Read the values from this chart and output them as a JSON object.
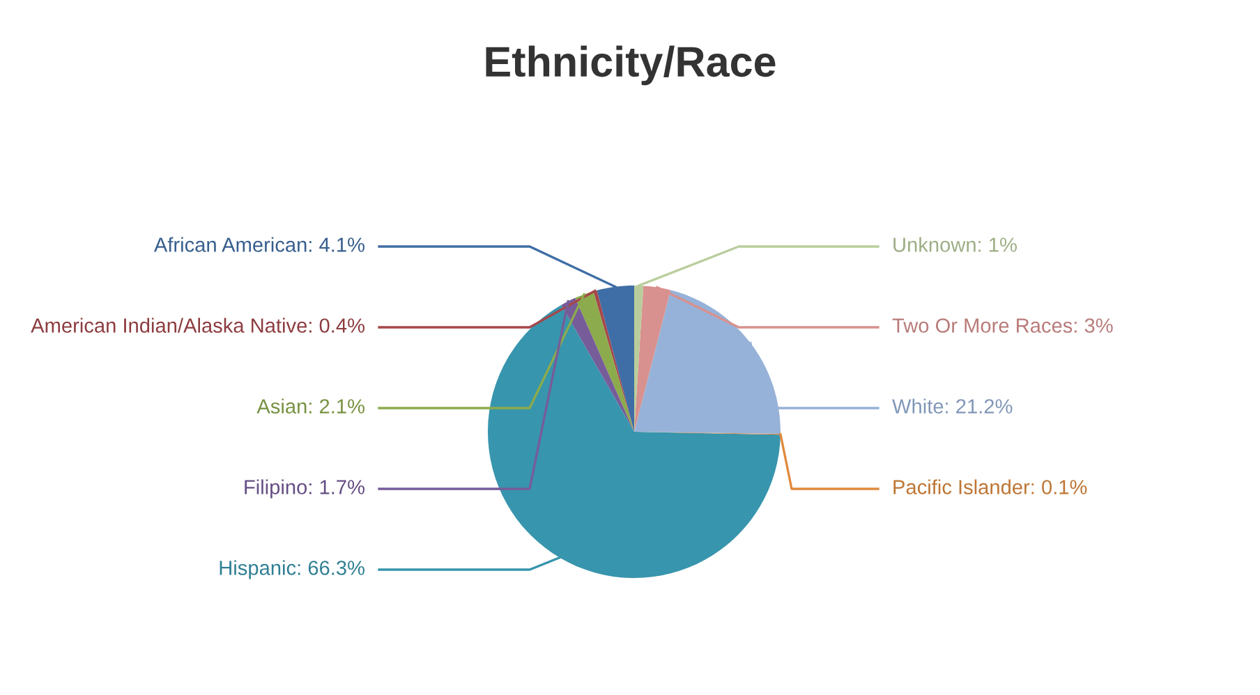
{
  "chart_data": {
    "type": "pie",
    "title": "Ethnicity/Race",
    "categories": [
      "African American",
      "American Indian/Alaska Native",
      "Asian",
      "Filipino",
      "Hispanic",
      "Pacific Islander",
      "White",
      "Two Or More Races",
      "Unknown"
    ],
    "values": [
      4.1,
      0.4,
      2.1,
      1.7,
      66.3,
      0.1,
      21.2,
      3,
      1
    ],
    "colors": [
      "#3f6ea6",
      "#a6474a",
      "#8cab4c",
      "#775c9a",
      "#3795ad",
      "#e08a3c",
      "#97b2d8",
      "#d8918e",
      "#b9cd9c"
    ],
    "value_labels": [
      "4.1%",
      "0.4%",
      "2.1%",
      "1.7%",
      "66.3%",
      "0.1%",
      "21.2%",
      "3%",
      "1%"
    ],
    "legend": false
  }
}
